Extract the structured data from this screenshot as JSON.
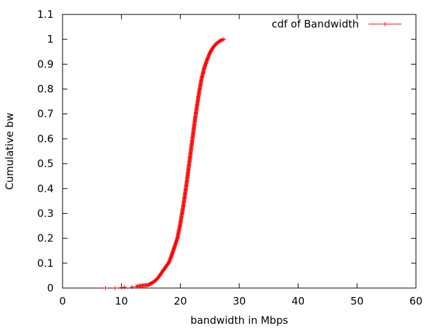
{
  "chart_data": {
    "type": "scatter",
    "xlabel": "bandwidth in Mbps",
    "ylabel": "Cumulative bw",
    "xlim": [
      0,
      60
    ],
    "ylim": [
      0,
      1.1
    ],
    "xticks": [
      "0",
      "10",
      "20",
      "30",
      "40",
      "50",
      "60"
    ],
    "yticks": [
      "0",
      "0.1",
      "0.2",
      "0.3",
      "0.4",
      "0.5",
      "0.6",
      "0.7",
      "0.8",
      "0.9",
      "1",
      "1.1"
    ],
    "grid": false,
    "legend_position": "top-right",
    "series": [
      {
        "name": "cdf of Bandwidth",
        "color": "#ff0000",
        "marker": "plus",
        "points": [
          [
            7.3,
            0.0
          ],
          [
            8.9,
            0.0
          ],
          [
            10.0,
            0.002
          ],
          [
            10.5,
            0.003
          ],
          [
            11.8,
            0.004
          ],
          [
            12.5,
            0.006
          ],
          [
            13.0,
            0.008
          ],
          [
            13.6,
            0.01
          ],
          [
            14.5,
            0.012
          ],
          [
            15.0,
            0.018
          ],
          [
            15.5,
            0.025
          ],
          [
            16.0,
            0.035
          ],
          [
            16.5,
            0.05
          ],
          [
            17.0,
            0.068
          ],
          [
            17.5,
            0.085
          ],
          [
            18.0,
            0.1
          ],
          [
            18.5,
            0.13
          ],
          [
            19.0,
            0.165
          ],
          [
            19.5,
            0.2
          ],
          [
            20.0,
            0.26
          ],
          [
            20.5,
            0.33
          ],
          [
            21.0,
            0.41
          ],
          [
            21.5,
            0.5
          ],
          [
            22.0,
            0.59
          ],
          [
            22.5,
            0.68
          ],
          [
            23.0,
            0.76
          ],
          [
            23.5,
            0.83
          ],
          [
            24.0,
            0.88
          ],
          [
            24.5,
            0.915
          ],
          [
            25.0,
            0.945
          ],
          [
            25.5,
            0.965
          ],
          [
            26.0,
            0.98
          ],
          [
            26.5,
            0.99
          ],
          [
            27.0,
            0.997
          ],
          [
            27.4,
            1.0
          ]
        ]
      }
    ]
  }
}
